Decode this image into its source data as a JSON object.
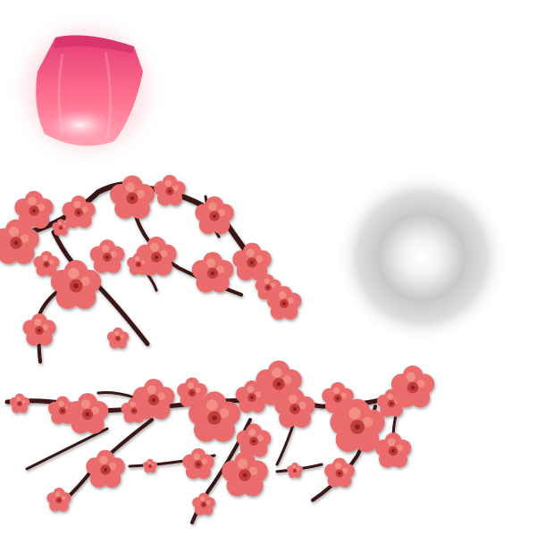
{
  "assets": {
    "lantern": {
      "icon": "sky-lantern-icon",
      "colors": {
        "top": "#e8457a",
        "body": "#ff7a95",
        "glow": "#ffd0d8"
      }
    },
    "glow_orb": {
      "icon": "soft-glow-orb-icon",
      "colors": {
        "ring": "#bdbdbd",
        "center": "#ffffff"
      }
    },
    "branch_upper": {
      "icon": "plum-blossom-branch-icon",
      "colors": {
        "branch": "#3a1414",
        "petal": "#ea6c6c",
        "petal_light": "#f59a8c",
        "center": "#c43d3d"
      }
    },
    "branch_lower": {
      "icon": "plum-blossom-branch-icon",
      "colors": {
        "branch": "#3a1414",
        "petal": "#ea6c6c",
        "petal_light": "#f59a8c",
        "center": "#c43d3d"
      }
    }
  }
}
